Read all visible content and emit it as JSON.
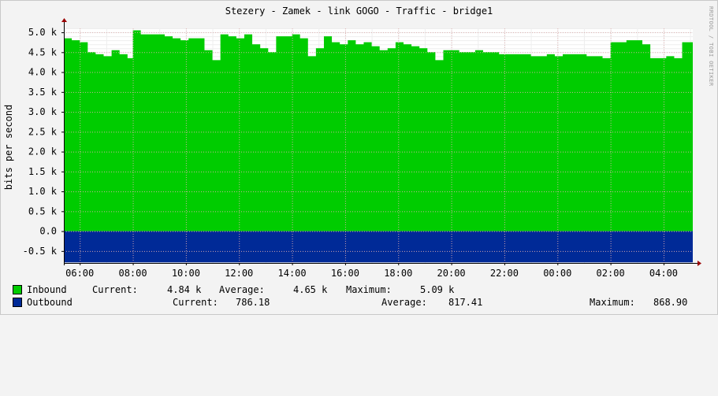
{
  "colors": {
    "inbound": "#00cc00",
    "outbound": "#002a97",
    "plot_bg": "#ffffff",
    "grid": "#e0b0b0",
    "axis": "#000000"
  },
  "chart_data": {
    "type": "area",
    "title": "Stezery - Zamek - link GOGO  - Traffic - bridge1",
    "watermark": "RRDTOOL / TOBI OETIKER",
    "ylabel": "bits per second",
    "ylim": [
      -0.8,
      5.1
    ],
    "yticks": [
      {
        "v": 5.0,
        "label": "5.0 k"
      },
      {
        "v": 4.5,
        "label": "4.5 k"
      },
      {
        "v": 4.0,
        "label": "4.0 k"
      },
      {
        "v": 3.5,
        "label": "3.5 k"
      },
      {
        "v": 3.0,
        "label": "3.0 k"
      },
      {
        "v": 2.5,
        "label": "2.5 k"
      },
      {
        "v": 2.0,
        "label": "2.0 k"
      },
      {
        "v": 1.5,
        "label": "1.5 k"
      },
      {
        "v": 1.0,
        "label": "1.0 k"
      },
      {
        "v": 0.5,
        "label": "0.5 k"
      },
      {
        "v": 0.0,
        "label": "0.0"
      },
      {
        "v": -0.5,
        "label": "-0.5 k"
      }
    ],
    "xrange": [
      5.4,
      29.1
    ],
    "xticks": [
      "06:00",
      "08:00",
      "10:00",
      "12:00",
      "14:00",
      "16:00",
      "18:00",
      "20:00",
      "22:00",
      "00:00",
      "02:00",
      "04:00"
    ],
    "series": [
      {
        "name": "Inbound",
        "color": "#00cc00",
        "x": [
          5.4,
          5.7,
          6.0,
          6.3,
          6.6,
          6.9,
          7.2,
          7.5,
          7.8,
          8.0,
          8.3,
          8.6,
          8.9,
          9.2,
          9.5,
          9.8,
          10.1,
          10.4,
          10.7,
          11.0,
          11.3,
          11.6,
          11.9,
          12.2,
          12.5,
          12.8,
          13.1,
          13.4,
          13.7,
          14.0,
          14.3,
          14.6,
          14.9,
          15.2,
          15.5,
          15.8,
          16.1,
          16.4,
          16.7,
          17.0,
          17.3,
          17.6,
          17.9,
          18.2,
          18.5,
          18.8,
          19.1,
          19.4,
          19.7,
          20.0,
          20.3,
          20.6,
          20.9,
          21.2,
          21.5,
          21.8,
          22.1,
          22.4,
          22.7,
          23.0,
          23.3,
          23.6,
          23.9,
          24.2,
          24.5,
          24.8,
          25.1,
          25.4,
          25.7,
          26.0,
          26.3,
          26.6,
          26.9,
          27.2,
          27.5,
          27.8,
          28.1,
          28.4,
          28.7,
          29.0,
          29.1
        ],
        "values": [
          4.85,
          4.8,
          4.75,
          4.5,
          4.45,
          4.4,
          4.55,
          4.45,
          4.35,
          5.05,
          4.95,
          4.95,
          4.95,
          4.9,
          4.85,
          4.8,
          4.85,
          4.85,
          4.55,
          4.3,
          4.95,
          4.9,
          4.85,
          4.95,
          4.7,
          4.6,
          4.5,
          4.9,
          4.9,
          4.95,
          4.85,
          4.4,
          4.6,
          4.9,
          4.75,
          4.7,
          4.8,
          4.7,
          4.75,
          4.65,
          4.55,
          4.6,
          4.75,
          4.7,
          4.65,
          4.6,
          4.5,
          4.3,
          4.55,
          4.55,
          4.5,
          4.5,
          4.55,
          4.5,
          4.5,
          4.45,
          4.45,
          4.45,
          4.45,
          4.4,
          4.4,
          4.45,
          4.4,
          4.45,
          4.45,
          4.45,
          4.4,
          4.4,
          4.35,
          4.75,
          4.75,
          4.8,
          4.8,
          4.7,
          4.35,
          4.35,
          4.4,
          4.35,
          4.75,
          4.75,
          4.8
        ]
      },
      {
        "name": "Outbound",
        "color": "#002a97",
        "x": [
          5.4,
          29.1
        ],
        "values": [
          -0.786,
          -0.786
        ]
      }
    ],
    "legend": [
      {
        "name": "Inbound",
        "current_label": "Current:",
        "current": "4.84 k",
        "average_label": "Average:",
        "average": "4.65 k",
        "maximum_label": "Maximum:",
        "maximum": "5.09 k"
      },
      {
        "name": "Outbound",
        "current_label": "Current:",
        "current": "786.18",
        "average_label": "Average:",
        "average": "817.41",
        "maximum_label": "Maximum:",
        "maximum": "868.90"
      }
    ]
  }
}
